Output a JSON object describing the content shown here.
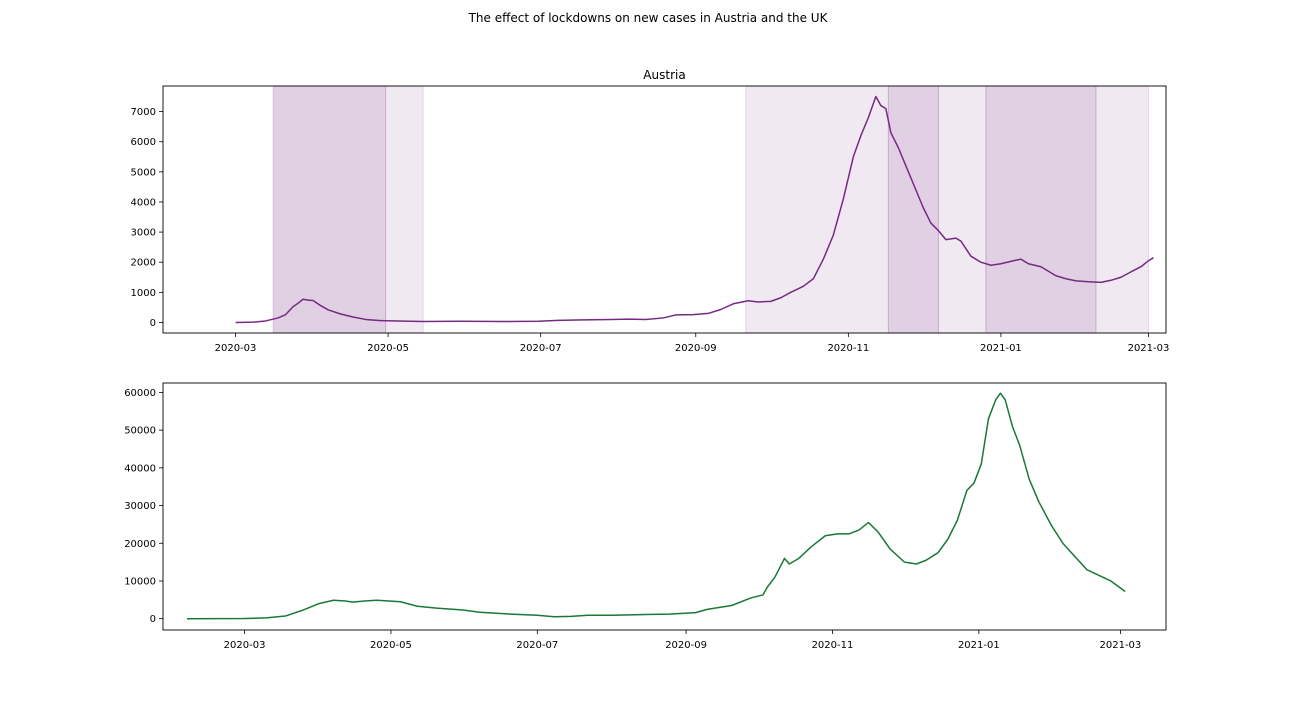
{
  "figure": {
    "title": "The effect of lockdowns on new cases in Austria and the UK"
  },
  "chart_data": [
    {
      "type": "line",
      "title": "Austria",
      "xlabel": "",
      "ylabel": "",
      "line_color": "#762a83",
      "shade_color": "#762a83",
      "x_axis": {
        "type": "date",
        "range": [
          "2020-02-01",
          "2021-03-08"
        ],
        "ticks": [
          "2020-03",
          "2020-05",
          "2020-07",
          "2020-09",
          "2020-11",
          "2021-01",
          "2021-03"
        ]
      },
      "y_axis": {
        "range": [
          -350,
          7850
        ],
        "ticks": [
          0,
          1000,
          2000,
          3000,
          4000,
          5000,
          6000,
          7000
        ]
      },
      "grid": false,
      "lockdown_periods": [
        {
          "start": "2020-03-16",
          "end": "2020-04-30",
          "level": "strong"
        },
        {
          "start": "2020-04-30",
          "end": "2020-05-15",
          "level": "light"
        },
        {
          "start": "2020-09-21",
          "end": "2020-11-17",
          "level": "light"
        },
        {
          "start": "2020-11-17",
          "end": "2020-12-07",
          "level": "strong"
        },
        {
          "start": "2020-12-07",
          "end": "2020-12-26",
          "level": "light"
        },
        {
          "start": "2020-12-26",
          "end": "2021-02-08",
          "level": "strong"
        },
        {
          "start": "2021-02-08",
          "end": "2021-03-01",
          "level": "light"
        }
      ],
      "series": [
        {
          "points": [
            [
              "2020-03-01",
              0
            ],
            [
              "2020-03-08",
              10
            ],
            [
              "2020-03-13",
              50
            ],
            [
              "2020-03-18",
              150
            ],
            [
              "2020-03-21",
              260
            ],
            [
              "2020-03-24",
              520
            ],
            [
              "2020-03-26",
              640
            ],
            [
              "2020-03-28",
              770
            ],
            [
              "2020-03-30",
              740
            ],
            [
              "2020-04-01",
              730
            ],
            [
              "2020-04-04",
              560
            ],
            [
              "2020-04-07",
              420
            ],
            [
              "2020-04-12",
              280
            ],
            [
              "2020-04-17",
              180
            ],
            [
              "2020-04-22",
              100
            ],
            [
              "2020-04-28",
              60
            ],
            [
              "2020-05-05",
              50
            ],
            [
              "2020-05-15",
              30
            ],
            [
              "2020-05-30",
              40
            ],
            [
              "2020-06-15",
              30
            ],
            [
              "2020-06-30",
              40
            ],
            [
              "2020-07-08",
              70
            ],
            [
              "2020-07-15",
              80
            ],
            [
              "2020-07-22",
              90
            ],
            [
              "2020-07-29",
              100
            ],
            [
              "2020-08-05",
              110
            ],
            [
              "2020-08-12",
              100
            ],
            [
              "2020-08-19",
              150
            ],
            [
              "2020-08-24",
              250
            ],
            [
              "2020-08-31",
              260
            ],
            [
              "2020-09-06",
              300
            ],
            [
              "2020-09-11",
              430
            ],
            [
              "2020-09-16",
              620
            ],
            [
              "2020-09-22",
              720
            ],
            [
              "2020-09-26",
              680
            ],
            [
              "2020-10-01",
              700
            ],
            [
              "2020-10-05",
              820
            ],
            [
              "2020-10-09",
              1000
            ],
            [
              "2020-10-14",
              1200
            ],
            [
              "2020-10-18",
              1450
            ],
            [
              "2020-10-22",
              2100
            ],
            [
              "2020-10-26",
              2900
            ],
            [
              "2020-10-30",
              4100
            ],
            [
              "2020-11-03",
              5500
            ],
            [
              "2020-11-06",
              6200
            ],
            [
              "2020-11-09",
              6800
            ],
            [
              "2020-11-12",
              7500
            ],
            [
              "2020-11-14",
              7200
            ],
            [
              "2020-11-16",
              7100
            ],
            [
              "2020-11-18",
              6300
            ],
            [
              "2020-11-21",
              5800
            ],
            [
              "2020-11-24",
              5200
            ],
            [
              "2020-11-27",
              4600
            ],
            [
              "2020-12-01",
              3800
            ],
            [
              "2020-12-04",
              3300
            ],
            [
              "2020-12-07",
              3050
            ],
            [
              "2020-12-10",
              2750
            ],
            [
              "2020-12-14",
              2800
            ],
            [
              "2020-12-16",
              2700
            ],
            [
              "2020-12-20",
              2200
            ],
            [
              "2020-12-24",
              2000
            ],
            [
              "2020-12-28",
              1900
            ],
            [
              "2021-01-01",
              1950
            ],
            [
              "2021-01-06",
              2050
            ],
            [
              "2021-01-09",
              2100
            ],
            [
              "2021-01-12",
              1950
            ],
            [
              "2021-01-17",
              1850
            ],
            [
              "2021-01-20",
              1700
            ],
            [
              "2021-01-23",
              1550
            ],
            [
              "2021-01-27",
              1450
            ],
            [
              "2021-01-31",
              1380
            ],
            [
              "2021-02-05",
              1350
            ],
            [
              "2021-02-10",
              1330
            ],
            [
              "2021-02-14",
              1400
            ],
            [
              "2021-02-18",
              1500
            ],
            [
              "2021-02-22",
              1680
            ],
            [
              "2021-02-26",
              1850
            ],
            [
              "2021-03-01",
              2050
            ],
            [
              "2021-03-03",
              2150
            ]
          ]
        }
      ]
    },
    {
      "type": "line",
      "title": "",
      "xlabel": "",
      "ylabel": "",
      "line_color": "#1b7837",
      "x_axis": {
        "type": "date",
        "range": [
          "2020-01-27",
          "2021-03-20"
        ],
        "ticks": [
          "2020-03",
          "2020-05",
          "2020-07",
          "2020-09",
          "2020-11",
          "2021-01",
          "2021-03"
        ]
      },
      "y_axis": {
        "range": [
          -3000,
          62500
        ],
        "ticks": [
          0,
          10000,
          20000,
          30000,
          40000,
          50000,
          60000
        ]
      },
      "grid": false,
      "series": [
        {
          "points": [
            [
              "2020-02-06",
              0
            ],
            [
              "2020-03-01",
              50
            ],
            [
              "2020-03-10",
              200
            ],
            [
              "2020-03-18",
              700
            ],
            [
              "2020-03-25",
              2200
            ],
            [
              "2020-04-01",
              4000
            ],
            [
              "2020-04-07",
              4900
            ],
            [
              "2020-04-12",
              4700
            ],
            [
              "2020-04-15",
              4400
            ],
            [
              "2020-04-20",
              4700
            ],
            [
              "2020-04-25",
              4900
            ],
            [
              "2020-04-30",
              4700
            ],
            [
              "2020-05-05",
              4500
            ],
            [
              "2020-05-12",
              3300
            ],
            [
              "2020-05-20",
              2800
            ],
            [
              "2020-05-31",
              2300
            ],
            [
              "2020-06-07",
              1700
            ],
            [
              "2020-06-20",
              1200
            ],
            [
              "2020-07-01",
              900
            ],
            [
              "2020-07-08",
              500
            ],
            [
              "2020-07-15",
              600
            ],
            [
              "2020-07-22",
              900
            ],
            [
              "2020-08-01",
              900
            ],
            [
              "2020-08-15",
              1100
            ],
            [
              "2020-08-25",
              1200
            ],
            [
              "2020-09-05",
              1600
            ],
            [
              "2020-09-10",
              2500
            ],
            [
              "2020-09-20",
              3500
            ],
            [
              "2020-09-28",
              5500
            ],
            [
              "2020-10-03",
              6300
            ],
            [
              "2020-10-05",
              8500
            ],
            [
              "2020-10-08",
              11000
            ],
            [
              "2020-10-12",
              16000
            ],
            [
              "2020-10-14",
              14500
            ],
            [
              "2020-10-18",
              16000
            ],
            [
              "2020-10-23",
              19000
            ],
            [
              "2020-10-29",
              22000
            ],
            [
              "2020-11-03",
              22500
            ],
            [
              "2020-11-08",
              22500
            ],
            [
              "2020-11-12",
              23500
            ],
            [
              "2020-11-16",
              25500
            ],
            [
              "2020-11-20",
              23000
            ],
            [
              "2020-11-25",
              18500
            ],
            [
              "2020-12-01",
              15000
            ],
            [
              "2020-12-06",
              14500
            ],
            [
              "2020-12-10",
              15500
            ],
            [
              "2020-12-15",
              17500
            ],
            [
              "2020-12-19",
              21000
            ],
            [
              "2020-12-23",
              26000
            ],
            [
              "2020-12-27",
              34000
            ],
            [
              "2020-12-30",
              36000
            ],
            [
              "2021-01-02",
              41000
            ],
            [
              "2021-01-05",
              53000
            ],
            [
              "2021-01-08",
              58000
            ],
            [
              "2021-01-10",
              59800
            ],
            [
              "2021-01-12",
              58000
            ],
            [
              "2021-01-15",
              51000
            ],
            [
              "2021-01-18",
              46000
            ],
            [
              "2021-01-22",
              37000
            ],
            [
              "2021-01-26",
              31000
            ],
            [
              "2021-01-31",
              25000
            ],
            [
              "2021-02-05",
              20000
            ],
            [
              "2021-02-10",
              16500
            ],
            [
              "2021-02-15",
              13000
            ],
            [
              "2021-02-20",
              11500
            ],
            [
              "2021-02-25",
              10000
            ],
            [
              "2021-03-03",
              7200
            ]
          ]
        }
      ]
    }
  ]
}
